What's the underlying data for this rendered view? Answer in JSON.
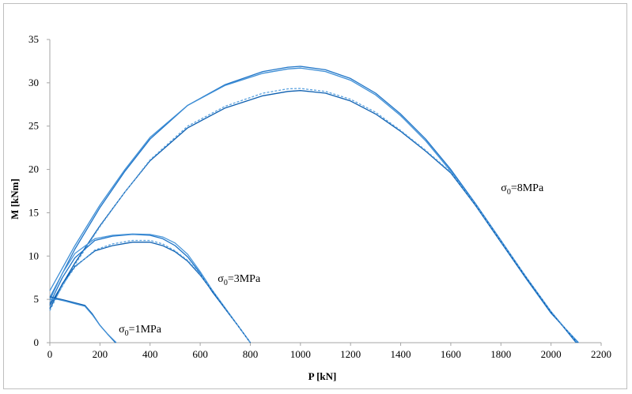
{
  "chart_data": {
    "type": "line",
    "xlabel": "P [kN]",
    "ylabel": "M [kNm]",
    "xlim": [
      0,
      2200
    ],
    "ylim": [
      0,
      35
    ],
    "xticks": [
      0,
      200,
      400,
      600,
      800,
      1000,
      1200,
      1400,
      1600,
      1800,
      2000,
      2200
    ],
    "yticks": [
      0,
      5,
      10,
      15,
      20,
      25,
      30,
      35
    ],
    "grid": false,
    "annotations": [
      {
        "symbol": "σ",
        "sub": "0",
        "text": "=8MPa",
        "x": 1800,
        "y": 17.5
      },
      {
        "symbol": "σ",
        "sub": "0",
        "text": "=3MPa",
        "x": 670,
        "y": 7.0
      },
      {
        "symbol": "σ",
        "sub": "0",
        "text": "=1MPa",
        "x": 275,
        "y": 1.2
      }
    ],
    "series": [
      {
        "group": "8MPa",
        "style": "solid",
        "color": "#1f75c8",
        "x": [
          0,
          100,
          200,
          300,
          400,
          550,
          700,
          850,
          950,
          1000,
          1100,
          1200,
          1300,
          1400,
          1500,
          1600,
          1700,
          1800,
          1900,
          2000,
          2100
        ],
        "y": [
          5.2,
          10.8,
          15.6,
          19.8,
          23.5,
          27.4,
          29.8,
          31.3,
          31.8,
          31.9,
          31.5,
          30.5,
          28.8,
          26.4,
          23.5,
          20.0,
          16.0,
          11.8,
          7.6,
          3.6,
          0
        ]
      },
      {
        "group": "8MPa",
        "style": "solid",
        "color": "#3f8fd6",
        "x": [
          0,
          100,
          200,
          300,
          400,
          550,
          700,
          850,
          950,
          1000,
          1100,
          1200,
          1300,
          1400,
          1500,
          1600,
          1700,
          1800,
          1900,
          2000,
          2110
        ],
        "y": [
          6.0,
          11.2,
          15.9,
          20.0,
          23.7,
          27.4,
          29.7,
          31.1,
          31.6,
          31.7,
          31.3,
          30.3,
          28.6,
          26.2,
          23.3,
          19.8,
          15.8,
          11.6,
          7.4,
          3.4,
          0
        ]
      },
      {
        "group": "8MPa",
        "style": "solid",
        "color": "#0d5fb0",
        "x": [
          0,
          100,
          200,
          300,
          400,
          550,
          700,
          850,
          950,
          1000,
          1100,
          1200,
          1300,
          1400,
          1500,
          1600,
          1700,
          1800,
          1900,
          2000,
          2105
        ],
        "y": [
          4.3,
          9.2,
          13.5,
          17.4,
          21.0,
          24.8,
          27.1,
          28.5,
          29.0,
          29.1,
          28.8,
          27.9,
          26.4,
          24.4,
          22.1,
          19.6,
          15.8,
          11.6,
          7.5,
          3.5,
          0
        ]
      },
      {
        "group": "8MPa",
        "style": "dashed",
        "color": "#5aa2e0",
        "x": [
          0,
          100,
          200,
          300,
          400,
          550,
          700,
          850,
          950,
          1000,
          1100,
          1200,
          1300,
          1400,
          1500,
          1600,
          1700,
          1800,
          1900,
          2000,
          2105
        ],
        "y": [
          4.0,
          9.0,
          13.4,
          17.4,
          21.1,
          25.0,
          27.3,
          28.8,
          29.3,
          29.35,
          29.0,
          28.1,
          26.6,
          24.5,
          22.2,
          19.7,
          15.9,
          11.7,
          7.6,
          3.6,
          0
        ]
      },
      {
        "group": "3MPa",
        "style": "solid",
        "color": "#1f75c8",
        "x": [
          0,
          50,
          100,
          180,
          250,
          330,
          400,
          450,
          500,
          550,
          600,
          650,
          700,
          750,
          800
        ],
        "y": [
          4.5,
          7.5,
          9.8,
          11.8,
          12.3,
          12.5,
          12.4,
          12.0,
          11.2,
          9.9,
          8.0,
          5.8,
          3.9,
          2.0,
          0
        ]
      },
      {
        "group": "3MPa",
        "style": "solid",
        "color": "#4b97da",
        "x": [
          0,
          50,
          100,
          180,
          250,
          330,
          400,
          450,
          500,
          550,
          600,
          650,
          700,
          750,
          800
        ],
        "y": [
          4.9,
          8.0,
          10.3,
          12.0,
          12.4,
          12.55,
          12.5,
          12.2,
          11.5,
          10.2,
          8.2,
          6.0,
          4.0,
          2.0,
          0
        ]
      },
      {
        "group": "3MPa",
        "style": "solid",
        "color": "#0d5fb0",
        "x": [
          0,
          50,
          100,
          180,
          250,
          330,
          400,
          450,
          500,
          550,
          600,
          650,
          700,
          750,
          800
        ],
        "y": [
          3.9,
          6.8,
          8.8,
          10.6,
          11.2,
          11.6,
          11.6,
          11.2,
          10.5,
          9.4,
          7.8,
          5.9,
          3.9,
          2.0,
          0
        ]
      },
      {
        "group": "3MPa",
        "style": "dashed",
        "color": "#5aa2e0",
        "x": [
          0,
          50,
          100,
          180,
          250,
          330,
          400,
          450,
          500,
          550,
          600,
          650,
          700,
          750,
          800
        ],
        "y": [
          3.7,
          6.6,
          8.7,
          10.7,
          11.4,
          11.8,
          11.8,
          11.4,
          10.6,
          9.5,
          7.9,
          6.0,
          4.0,
          2.0,
          0
        ]
      },
      {
        "group": "1MPa",
        "style": "solid",
        "color": "#0d5fb0",
        "x": [
          0,
          30,
          60,
          100,
          140,
          170,
          200,
          230,
          262
        ],
        "y": [
          5.3,
          5.1,
          4.9,
          4.6,
          4.3,
          3.3,
          2.0,
          1.0,
          0
        ]
      },
      {
        "group": "1MPa",
        "style": "solid",
        "color": "#3f8fd6",
        "x": [
          0,
          30,
          60,
          100,
          140,
          170,
          200,
          230,
          265
        ],
        "y": [
          5.0,
          5.0,
          4.8,
          4.5,
          4.2,
          3.2,
          2.0,
          1.0,
          0
        ]
      }
    ]
  }
}
